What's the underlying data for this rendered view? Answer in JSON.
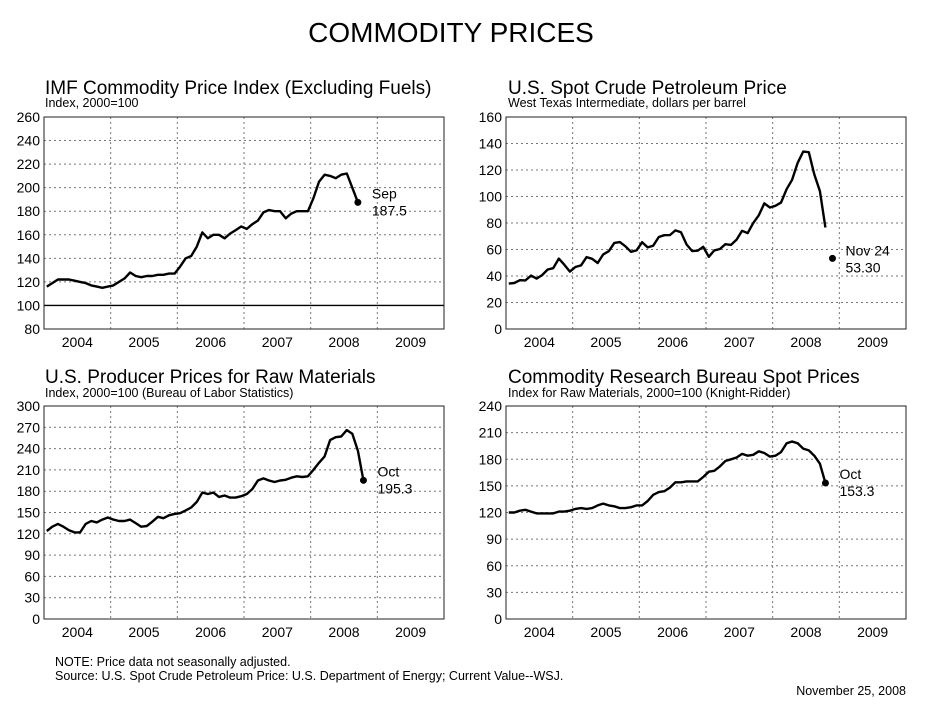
{
  "title": "COMMODITY PRICES",
  "notes": {
    "note": "NOTE:  Price data not seasonally adjusted.",
    "source": "Source:  U.S. Spot Crude Petroleum Price: U.S. Department of Energy; Current Value--WSJ.",
    "date": "November 25, 2008"
  },
  "chart_data": [
    {
      "type": "line",
      "title": "IMF Commodity Price Index (Excluding Fuels)",
      "subtitle": "Index, 2000=100",
      "x_ticks": [
        "2004",
        "2005",
        "2006",
        "2007",
        "2008",
        "2009"
      ],
      "ylim": [
        80,
        260
      ],
      "y_ticks": [
        "80",
        "100",
        "120",
        "140",
        "160",
        "180",
        "200",
        "220",
        "240",
        "260"
      ],
      "y_tick_values": [
        80,
        100,
        120,
        140,
        160,
        180,
        200,
        220,
        240,
        260
      ],
      "reference_line": 100,
      "grid": true,
      "frequency": "monthly",
      "monthly": {
        "2004": [
          116,
          119,
          122,
          122,
          122,
          121,
          120,
          119,
          117,
          116,
          115,
          116
        ],
        "2005": [
          117,
          120,
          123,
          128,
          125,
          124,
          125,
          125,
          126,
          126,
          127,
          127
        ],
        "2006": [
          133,
          140,
          142,
          150,
          162,
          157,
          160,
          160,
          157,
          161,
          164,
          167
        ],
        "2007": [
          165,
          169,
          172,
          179,
          181,
          180,
          180,
          174,
          178,
          180,
          180,
          180
        ],
        "2008": [
          191,
          205,
          211,
          210,
          208,
          211,
          212,
          200,
          187.5
        ]
      },
      "last_point": {
        "label": "Sep",
        "value_label": "187.5",
        "x": "2008-09",
        "value": 187.5
      }
    },
    {
      "type": "line",
      "title": "U.S. Spot Crude Petroleum Price",
      "subtitle": "West Texas Intermediate, dollars per barrel",
      "x_ticks": [
        "2004",
        "2005",
        "2006",
        "2007",
        "2008",
        "2009"
      ],
      "ylim": [
        0,
        160
      ],
      "y_ticks": [
        "0",
        "20",
        "40",
        "60",
        "80",
        "100",
        "120",
        "140",
        "160"
      ],
      "y_tick_values": [
        0,
        20,
        40,
        60,
        80,
        100,
        120,
        140,
        160
      ],
      "grid": true,
      "frequency": "monthly",
      "monthly": {
        "2004": [
          34.3,
          34.7,
          36.8,
          36.7,
          40.3,
          38.0,
          40.7,
          44.9,
          45.9,
          53.1,
          48.5,
          43.3
        ],
        "2005": [
          46.8,
          48.0,
          54.3,
          53.0,
          49.8,
          56.3,
          58.7,
          65.0,
          65.6,
          62.4,
          58.3,
          59.4
        ],
        "2006": [
          65.5,
          61.6,
          62.9,
          69.4,
          70.8,
          70.9,
          74.4,
          73.0,
          63.8,
          58.9,
          59.1,
          62.0
        ],
        "2007": [
          54.5,
          59.3,
          60.4,
          64.0,
          63.5,
          67.5,
          74.1,
          72.4,
          79.9,
          85.8,
          94.8,
          91.7
        ],
        "2008": [
          93.0,
          95.4,
          105.5,
          112.6,
          125.4,
          133.9,
          133.4,
          116.7,
          104.1,
          76.6
        ]
      },
      "last_point": {
        "label": "Nov 24",
        "value_label": "53.30",
        "x": "2008-11-24",
        "value": 53.3
      }
    },
    {
      "type": "line",
      "title": "U.S. Producer Prices for Raw Materials",
      "subtitle": "Index, 2000=100  (Bureau of Labor Statistics)",
      "x_ticks": [
        "2004",
        "2005",
        "2006",
        "2007",
        "2008",
        "2009"
      ],
      "ylim": [
        0,
        300
      ],
      "y_ticks": [
        "0",
        "30",
        "60",
        "90",
        "120",
        "150",
        "180",
        "210",
        "240",
        "270",
        "300"
      ],
      "y_tick_values": [
        0,
        30,
        60,
        90,
        120,
        150,
        180,
        210,
        240,
        270,
        300
      ],
      "grid": true,
      "frequency": "monthly",
      "monthly": {
        "2004": [
          124,
          130,
          134,
          130,
          125,
          122,
          122,
          134,
          138,
          136,
          140,
          143
        ],
        "2005": [
          140,
          138,
          138,
          140,
          135,
          130,
          131,
          137,
          144,
          142,
          146,
          148
        ],
        "2006": [
          149,
          153,
          157,
          165,
          178,
          176,
          178,
          172,
          174,
          171,
          171,
          173
        ],
        "2007": [
          176,
          183,
          195,
          198,
          195,
          193,
          195,
          196,
          199,
          201,
          200,
          201
        ],
        "2008": [
          210,
          220,
          229,
          252,
          256,
          257,
          266,
          261,
          237,
          195.3
        ]
      },
      "last_point": {
        "label": "Oct",
        "value_label": "195.3",
        "x": "2008-10",
        "value": 195.3
      }
    },
    {
      "type": "line",
      "title": "Commodity Research Bureau Spot Prices",
      "subtitle": "Index for Raw Materials, 2000=100  (Knight-Ridder)",
      "x_ticks": [
        "2004",
        "2005",
        "2006",
        "2007",
        "2008",
        "2009"
      ],
      "ylim": [
        0,
        240
      ],
      "y_ticks": [
        "0",
        "30",
        "60",
        "90",
        "120",
        "150",
        "180",
        "210",
        "240"
      ],
      "y_tick_values": [
        0,
        30,
        60,
        90,
        120,
        150,
        180,
        210,
        240
      ],
      "grid": true,
      "frequency": "monthly",
      "monthly": {
        "2004": [
          120,
          120,
          122,
          123,
          121,
          119,
          119,
          119,
          119,
          121,
          121,
          122
        ],
        "2005": [
          124,
          125,
          124,
          125,
          128,
          130,
          128,
          127,
          125,
          125,
          126,
          128
        ],
        "2006": [
          128,
          133,
          140,
          143,
          144,
          148,
          154,
          154,
          155,
          155,
          155,
          160
        ],
        "2007": [
          166,
          167,
          172,
          178,
          180,
          182,
          186,
          184,
          185,
          189,
          187,
          183
        ],
        "2008": [
          184,
          188,
          198,
          200,
          198,
          192,
          190,
          184,
          175,
          153.3
        ]
      },
      "last_point": {
        "label": "Oct",
        "value_label": "153.3",
        "x": "2008-10",
        "value": 153.3
      }
    }
  ]
}
